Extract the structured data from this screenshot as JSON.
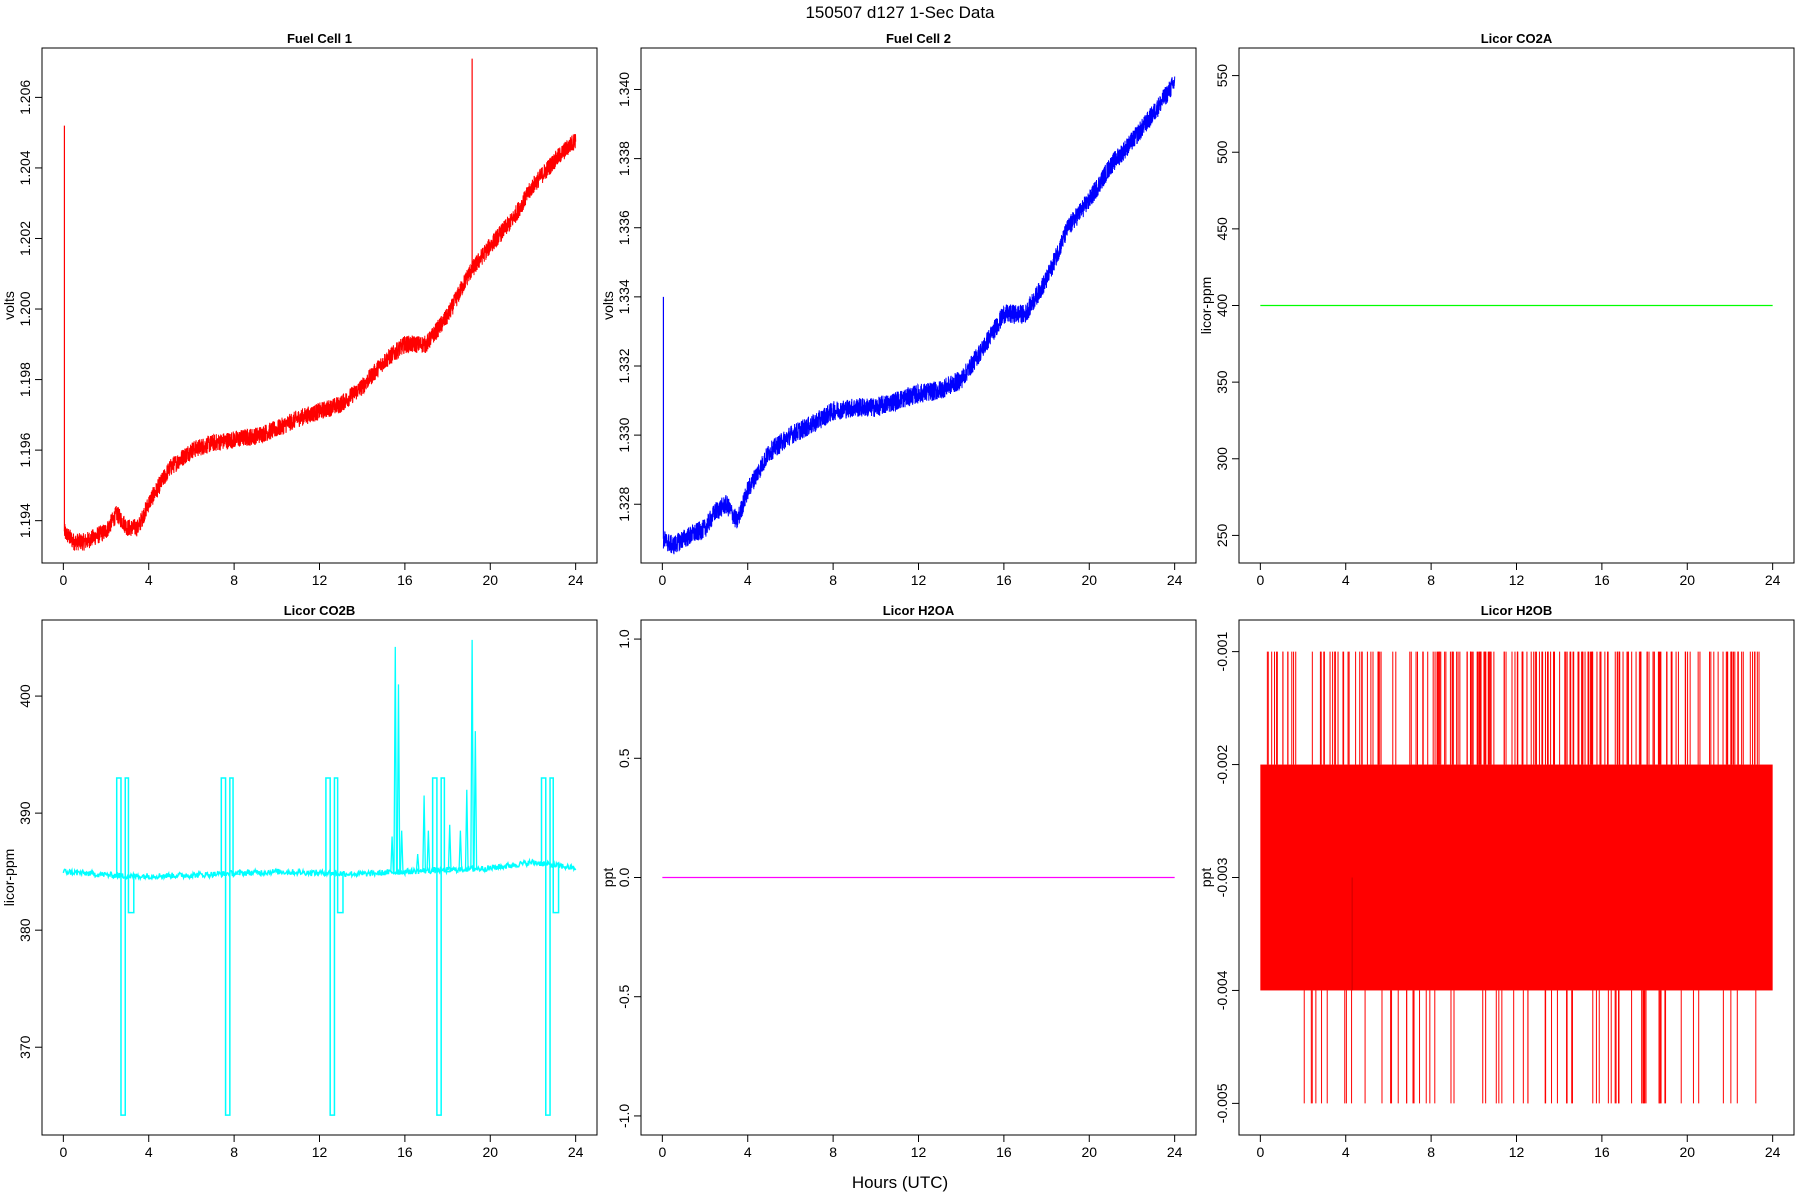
{
  "figure": {
    "title": "150507   d127   1-Sec Data",
    "xlabel": "Hours (UTC)"
  },
  "chart_data": [
    {
      "type": "line",
      "title": "Fuel Cell 1",
      "ylabel": "volts",
      "xlim": [
        -1,
        25
      ],
      "ylim": [
        1.1928,
        1.2074
      ],
      "xticks": [
        0,
        4,
        8,
        12,
        16,
        20,
        24
      ],
      "yticks": [
        1.194,
        1.196,
        1.198,
        1.2,
        1.202,
        1.204,
        1.206
      ],
      "ytick_labels": [
        "1.194",
        "1.196",
        "1.198",
        "1.200",
        "1.202",
        "1.204",
        "1.206"
      ],
      "color": "#ff0000",
      "noise": 0.00025,
      "series": [
        {
          "x": [
            0,
            0.5,
            1,
            2,
            2.5,
            3,
            3.5,
            4,
            5,
            6,
            7,
            8,
            9,
            10,
            11,
            12,
            13,
            14,
            15,
            16,
            17,
            18,
            19,
            20,
            21,
            22,
            23,
            24
          ],
          "y": [
            1.1937,
            1.1934,
            1.1934,
            1.1937,
            1.1942,
            1.1938,
            1.1938,
            1.1945,
            1.1955,
            1.196,
            1.1962,
            1.1963,
            1.1964,
            1.1966,
            1.1969,
            1.1971,
            1.1973,
            1.1978,
            1.1985,
            1.199,
            1.199,
            1.1998,
            1.201,
            1.2018,
            1.2025,
            1.2035,
            1.2042,
            1.2048
          ]
        }
      ],
      "spikes": [
        {
          "x": 0.05,
          "y0": 1.1937,
          "y1": 1.2052
        },
        {
          "x": 19.15,
          "y0": 1.2012,
          "y1": 1.2071
        }
      ]
    },
    {
      "type": "line",
      "title": "Fuel Cell 2",
      "ylabel": "volts",
      "xlim": [
        -1,
        25
      ],
      "ylim": [
        1.3263,
        1.3412
      ],
      "xticks": [
        0,
        4,
        8,
        12,
        16,
        20,
        24
      ],
      "yticks": [
        1.328,
        1.33,
        1.332,
        1.334,
        1.336,
        1.338,
        1.34
      ],
      "ytick_labels": [
        "1.328",
        "1.330",
        "1.332",
        "1.334",
        "1.336",
        "1.338",
        "1.340"
      ],
      "color": "#0000ff",
      "noise": 0.00028,
      "series": [
        {
          "x": [
            0,
            0.5,
            1,
            2,
            2.5,
            3,
            3.5,
            4,
            5,
            6,
            7,
            8,
            9,
            10,
            11,
            12,
            13,
            14,
            15,
            16,
            17,
            18,
            19,
            20,
            21,
            22,
            23,
            24
          ],
          "y": [
            1.327,
            1.3268,
            1.327,
            1.3273,
            1.3278,
            1.328,
            1.3275,
            1.3284,
            1.3295,
            1.33,
            1.3303,
            1.3307,
            1.3308,
            1.3308,
            1.331,
            1.3312,
            1.3313,
            1.3316,
            1.3325,
            1.3335,
            1.3335,
            1.3345,
            1.336,
            1.3368,
            1.3378,
            1.3385,
            1.3393,
            1.3402
          ]
        }
      ],
      "spikes": [
        {
          "x": 0.05,
          "y0": 1.327,
          "y1": 1.334
        }
      ]
    },
    {
      "type": "line",
      "title": "Licor CO2A",
      "ylabel": "licor-ppm",
      "xlim": [
        -1,
        25
      ],
      "ylim": [
        232,
        568
      ],
      "xticks": [
        0,
        4,
        8,
        12,
        16,
        20,
        24
      ],
      "yticks": [
        250,
        300,
        350,
        400,
        450,
        500,
        550
      ],
      "ytick_labels": [
        "250",
        "300",
        "350",
        "400",
        "450",
        "500",
        "550"
      ],
      "color": "#00ff00",
      "series": [
        {
          "x": [
            0,
            24
          ],
          "y": [
            400,
            400
          ]
        }
      ]
    },
    {
      "type": "line",
      "title": "Licor CO2B",
      "ylabel": "licor-ppm",
      "xlim": [
        -1,
        25
      ],
      "ylim": [
        362.5,
        406.5
      ],
      "xticks": [
        0,
        4,
        8,
        12,
        16,
        20,
        24
      ],
      "yticks": [
        370,
        380,
        390,
        400
      ],
      "ytick_labels": [
        "370",
        "380",
        "390",
        "400"
      ],
      "color": "#00ffff",
      "baseline": [
        [
          0,
          385
        ],
        [
          3,
          384.6
        ],
        [
          6,
          384.7
        ],
        [
          10,
          385
        ],
        [
          14,
          384.8
        ],
        [
          16,
          385
        ],
        [
          20,
          385.3
        ],
        [
          22,
          385.8
        ],
        [
          24,
          385.3
        ]
      ],
      "calibrations": [
        {
          "x": 2.5,
          "low": 364.2,
          "high": 393.0,
          "after": 381.5
        },
        {
          "x": 7.4,
          "low": 364.2,
          "high": 393.0,
          "after": 384.8
        },
        {
          "x": 12.3,
          "low": 364.2,
          "high": 393.0,
          "after": 381.5
        },
        {
          "x": 17.3,
          "low": 364.2,
          "high": 393.0,
          "after": 385.0
        },
        {
          "x": 22.4,
          "low": 364.2,
          "high": 393.0,
          "after": 381.5
        }
      ],
      "peaks": [
        {
          "x": 15.4,
          "y": 388.0
        },
        {
          "x": 15.55,
          "y": 404.2
        },
        {
          "x": 15.7,
          "y": 401.0
        },
        {
          "x": 15.85,
          "y": 388.5
        },
        {
          "x": 16.6,
          "y": 386.5
        },
        {
          "x": 16.9,
          "y": 391.5
        },
        {
          "x": 17.1,
          "y": 388.5
        },
        {
          "x": 18.1,
          "y": 389.0
        },
        {
          "x": 18.6,
          "y": 388.5
        },
        {
          "x": 18.9,
          "y": 392.0
        },
        {
          "x": 19.15,
          "y": 404.8
        },
        {
          "x": 19.3,
          "y": 397.0
        }
      ]
    },
    {
      "type": "line",
      "title": "Licor H2OA",
      "ylabel": "ppt",
      "xlim": [
        -1,
        25
      ],
      "ylim": [
        -1.08,
        1.08
      ],
      "xticks": [
        0,
        4,
        8,
        12,
        16,
        20,
        24
      ],
      "yticks": [
        -1.0,
        -0.5,
        0.0,
        0.5,
        1.0
      ],
      "ytick_labels": [
        "-1.0",
        "-0.5",
        "0.0",
        "0.5",
        "1.0"
      ],
      "color": "#ff00ff",
      "series": [
        {
          "x": [
            0,
            24
          ],
          "y": [
            0,
            0
          ]
        }
      ]
    },
    {
      "type": "line",
      "title": "Licor H2OB",
      "ylabel": "ppt",
      "xlim": [
        -1,
        25
      ],
      "ylim": [
        -0.00528,
        -0.00072
      ],
      "xticks": [
        0,
        4,
        8,
        12,
        16,
        20,
        24
      ],
      "yticks": [
        -0.005,
        -0.004,
        -0.003,
        -0.002,
        -0.001
      ],
      "ytick_labels": [
        "-0.005",
        "-0.004",
        "-0.003",
        "-0.002",
        "-0.001"
      ],
      "color": "#ff0000",
      "band": {
        "x0": 0,
        "x1": 24,
        "y0": -0.004,
        "y1": -0.002
      },
      "up_spikes": {
        "count": 210,
        "from": -0.002,
        "to": -0.001
      },
      "down_spikes": {
        "count": 70,
        "from": -0.004,
        "to": -0.005
      },
      "extra_spike": {
        "x": 4.3,
        "y0": -0.004,
        "y1": -0.003
      }
    }
  ]
}
